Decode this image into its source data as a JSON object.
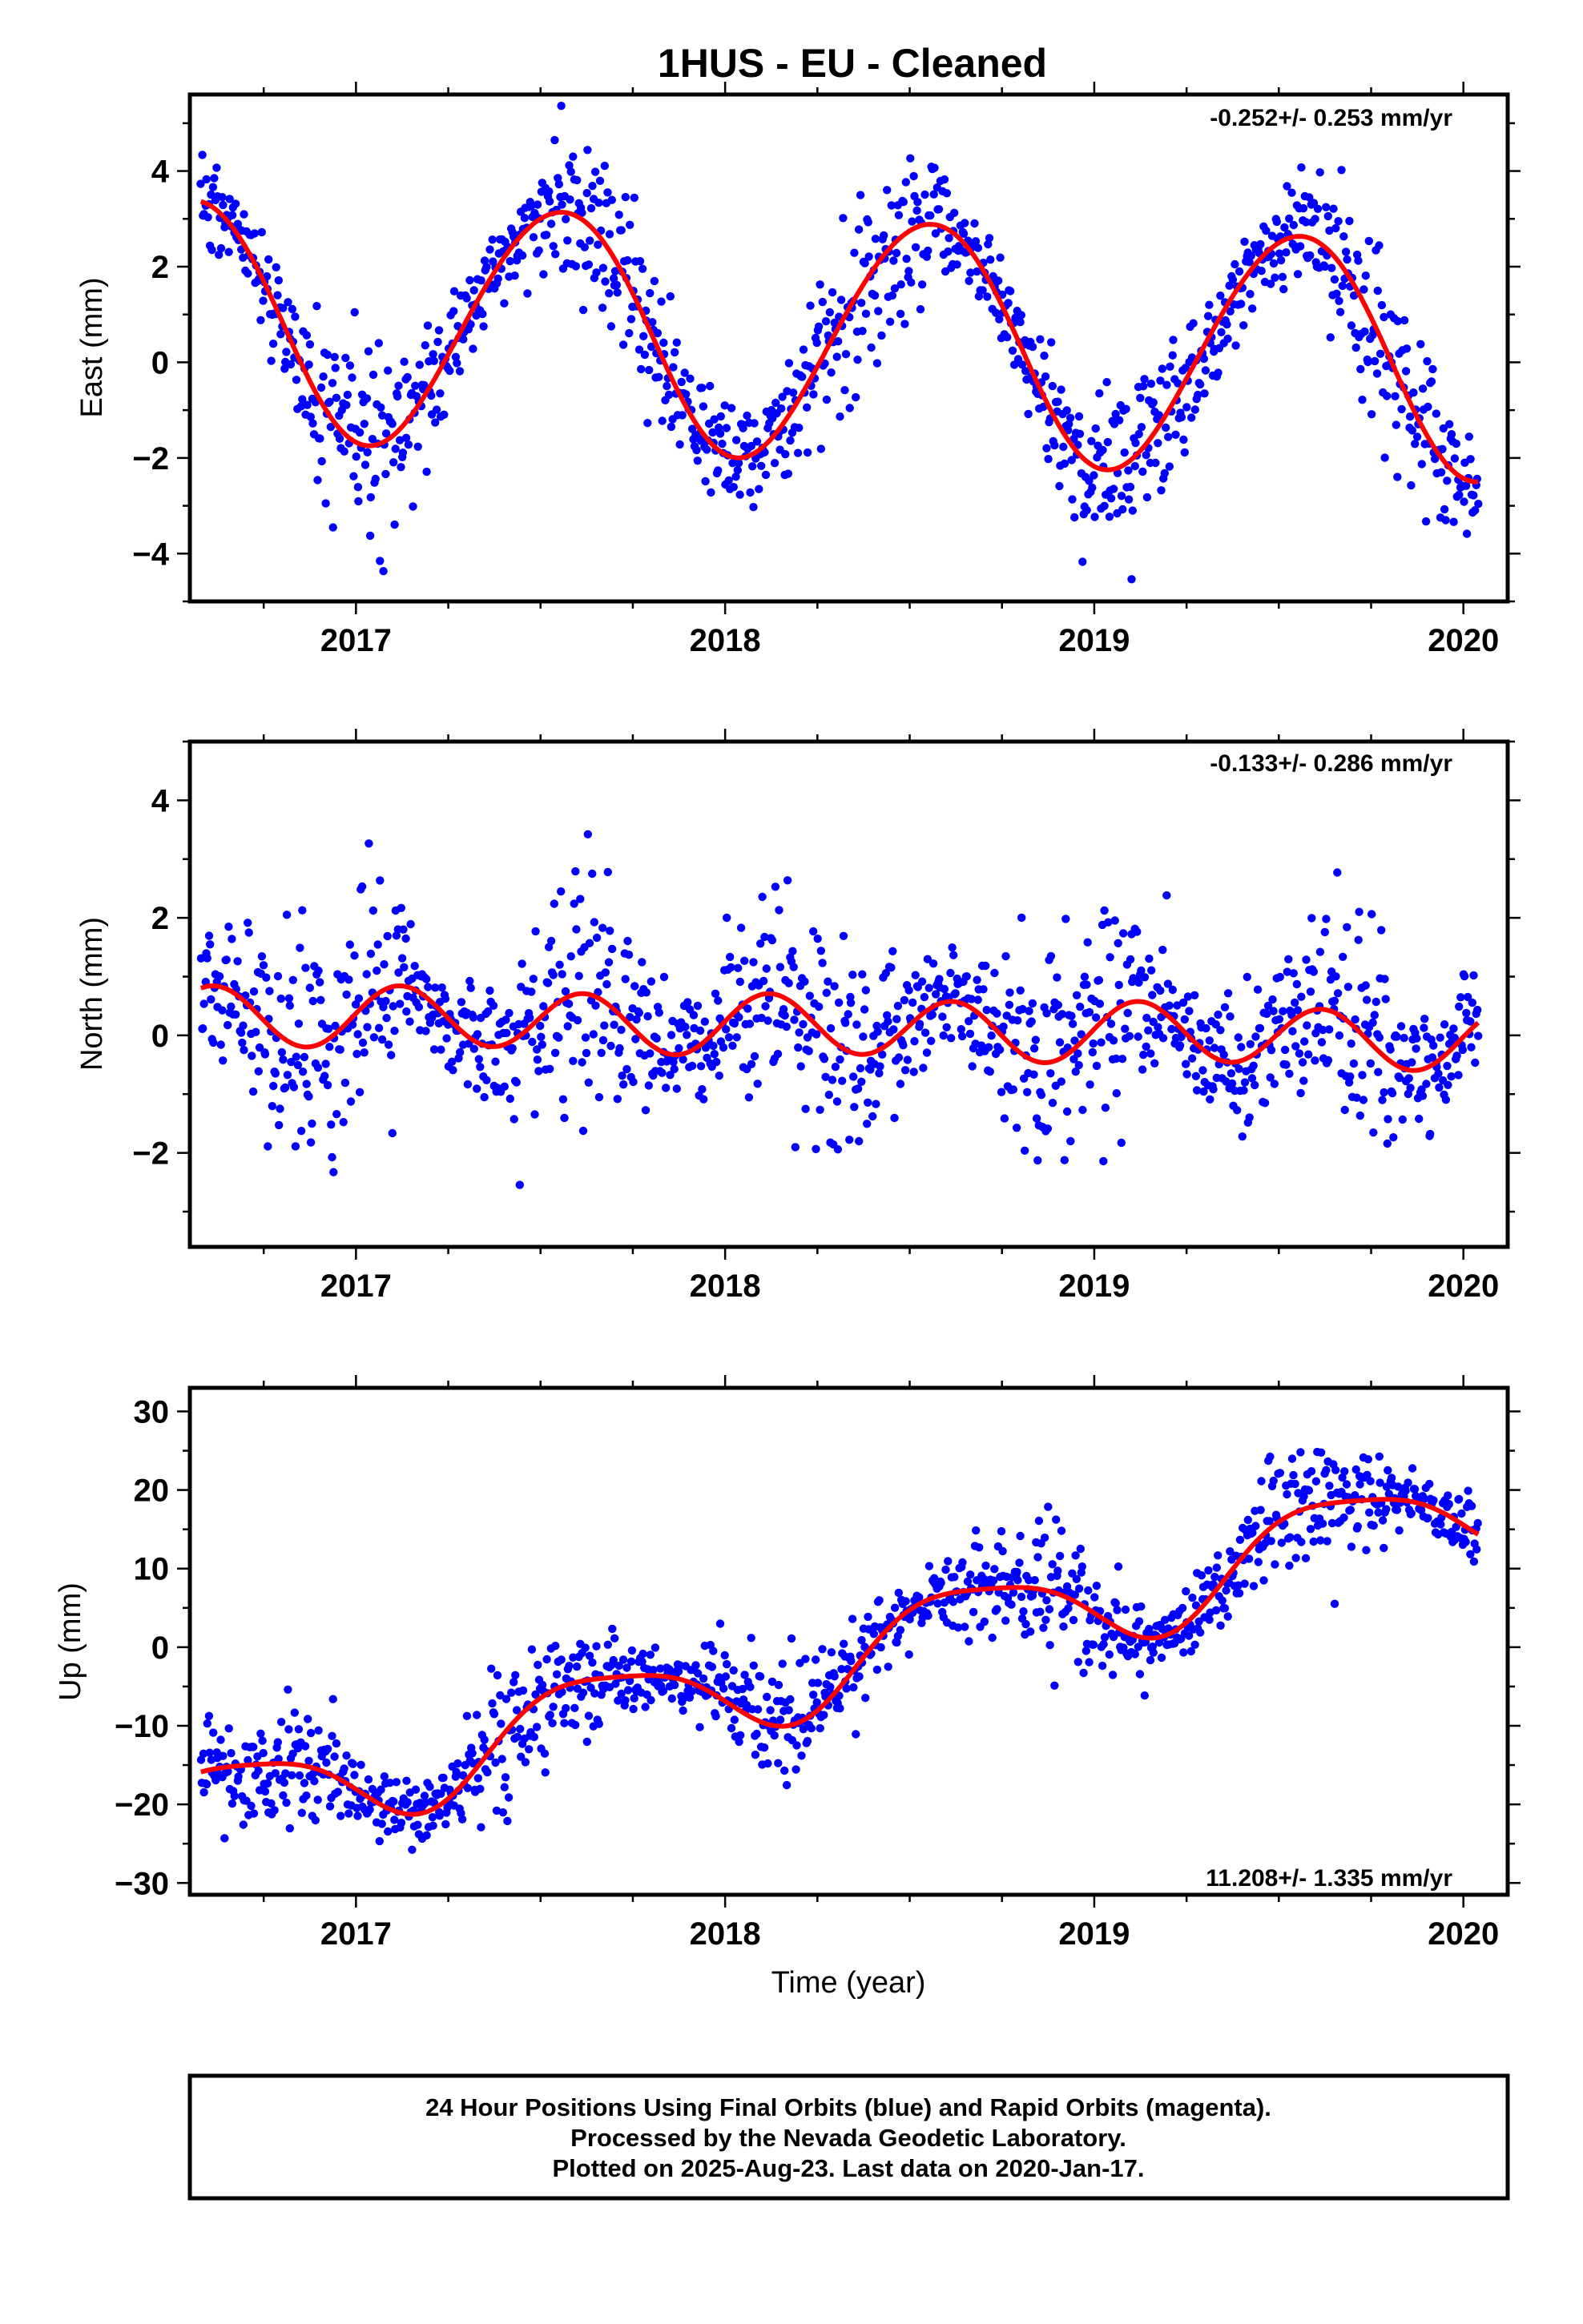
{
  "title": "1HUS  - EU - Cleaned",
  "colors": {
    "points": "#0000ff",
    "fit": "#ff0000",
    "frame": "#000000"
  },
  "x_axis": {
    "label": "Time (year)",
    "range": [
      2016.55,
      2020.12
    ],
    "ticks": [
      "2017",
      "2018",
      "2019",
      "2020"
    ]
  },
  "chart_data": [
    {
      "type": "scatter",
      "name": "east",
      "ylabel": "East (mm)",
      "ylim": [
        -5.0,
        5.6
      ],
      "yticks": [
        "4",
        "2",
        "0",
        "−2",
        "−4"
      ],
      "xticks": [
        "2017",
        "2018",
        "2019",
        "2020"
      ],
      "annotation": "-0.252+/- 0.253 mm/yr",
      "annotation_position": "top-right",
      "trend_mm_per_yr": -0.252,
      "fit": {
        "offset": 0.5,
        "trend": -0.252,
        "annual_cos": -2.4,
        "annual_sin": -0.7,
        "semi_cos": -0.1,
        "semi_sin": 0.05,
        "noise_sd": 0.85
      },
      "x_start": 2016.58,
      "x_end": 2020.04,
      "n_points": 1150
    },
    {
      "type": "scatter",
      "name": "north",
      "ylabel": "North (mm)",
      "ylim": [
        -3.6,
        5.0
      ],
      "yticks": [
        "4",
        "2",
        "0",
        "−2"
      ],
      "xticks": [
        "2017",
        "2018",
        "2019",
        "2020"
      ],
      "annotation": "-0.133+/- 0.286 mm/yr",
      "annotation_position": "top-right",
      "trend_mm_per_yr": -0.133,
      "fit": {
        "offset": 0.15,
        "trend": -0.133,
        "annual_cos": 0.0,
        "annual_sin": 0.05,
        "semi_cos": 0.05,
        "semi_sin": 0.5,
        "noise_sd": 0.9
      },
      "x_start": 2016.58,
      "x_end": 2020.04,
      "n_points": 1150
    },
    {
      "type": "scatter",
      "name": "up",
      "ylabel": "Up (mm)",
      "ylim": [
        -31.5,
        33.0
      ],
      "yticks": [
        "30",
        "20",
        "10",
        "0",
        "−10",
        "−20",
        "−30"
      ],
      "xticks": [
        "2017",
        "2018",
        "2019",
        "2020"
      ],
      "annotation": "11.208+/- 1.335 mm/yr",
      "annotation_position": "bottom-right",
      "trend_mm_per_yr": 11.208,
      "fit": {
        "offset": -1.5,
        "trend": 11.208,
        "annual_cos": -3.0,
        "annual_sin": -5.0,
        "semi_cos": 1.0,
        "semi_sin": -0.8,
        "noise_sd": 3.6
      },
      "x_start": 2016.58,
      "x_end": 2020.04,
      "n_points": 1150
    }
  ],
  "footer": {
    "line1": "24 Hour Positions Using Final Orbits (blue) and Rapid Orbits (magenta).",
    "line2": "Processed by the Nevada Geodetic Laboratory.",
    "line3": "Plotted on 2025-Aug-23. Last data on 2020-Jan-17."
  }
}
